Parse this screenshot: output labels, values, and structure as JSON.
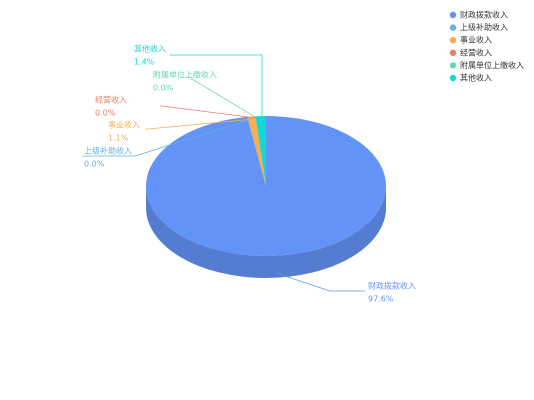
{
  "chart_data": {
    "type": "pie",
    "categories": [
      "财政拨款收入",
      "上级补助收入",
      "事业收入",
      "经营收入",
      "附属单位上缴收入",
      "其他收入"
    ],
    "values": [
      97.6,
      0.0,
      1.1,
      0.0,
      0.0,
      1.4
    ],
    "value_labels": [
      "97.6%",
      "0.0%",
      "1.1%",
      "0.0%",
      "0.0%",
      "1.4%"
    ],
    "colors": [
      "#6393f6",
      "#5fb1e3",
      "#f5ae52",
      "#ec7e68",
      "#6bd4b4",
      "#14d8d8"
    ],
    "legend": "top-right"
  }
}
